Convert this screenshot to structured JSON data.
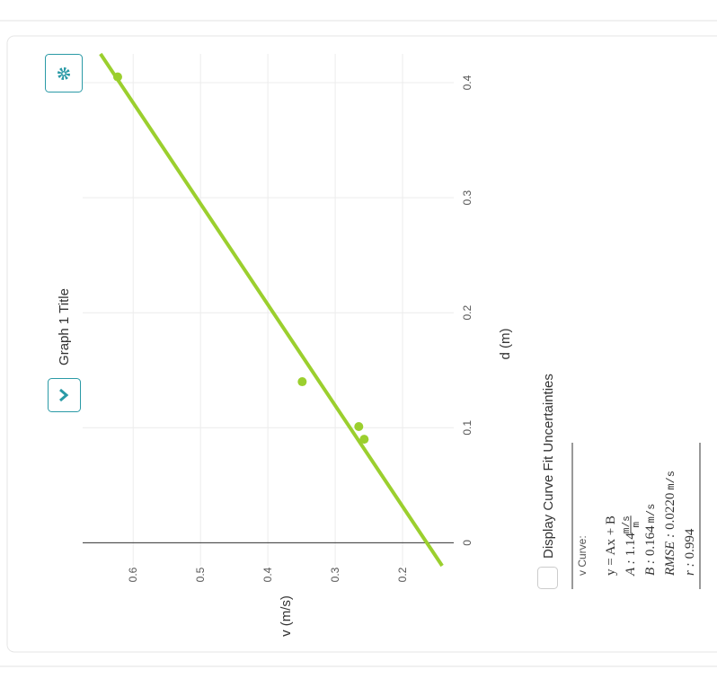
{
  "title": "Graph 1 Title",
  "chart_data": {
    "type": "scatter",
    "x_label": "d (m)",
    "y_label": "v (m/s)",
    "x": [
      0.405,
      0.14,
      0.101,
      0.09
    ],
    "values": [
      0.623,
      0.349,
      0.265,
      0.257
    ],
    "color": "#9bcf2e",
    "xlim": [
      -0.02,
      0.425
    ],
    "ylim": [
      0.124,
      0.675
    ],
    "xticks": [
      0,
      0.1,
      0.2,
      0.3,
      0.4
    ],
    "yticks": [
      0.2,
      0.3,
      0.4,
      0.5,
      0.6
    ],
    "grid": true,
    "fit": {
      "heading": "v Curve:",
      "equation": "y = Ax + B",
      "params": [
        {
          "name": "A :",
          "value": 1.14,
          "unit": "m/s",
          "per": "m"
        },
        {
          "name": "B :",
          "value": 0.164,
          "unit": "m/s"
        },
        {
          "name": "RMSE :",
          "value": 0.022,
          "value_label": "0.0220",
          "unit": "m/s"
        },
        {
          "name": "r :",
          "value": 0.994
        }
      ]
    }
  },
  "controls": {
    "uncertainty_checkbox": "Display Curve Fit Uncertainties"
  }
}
